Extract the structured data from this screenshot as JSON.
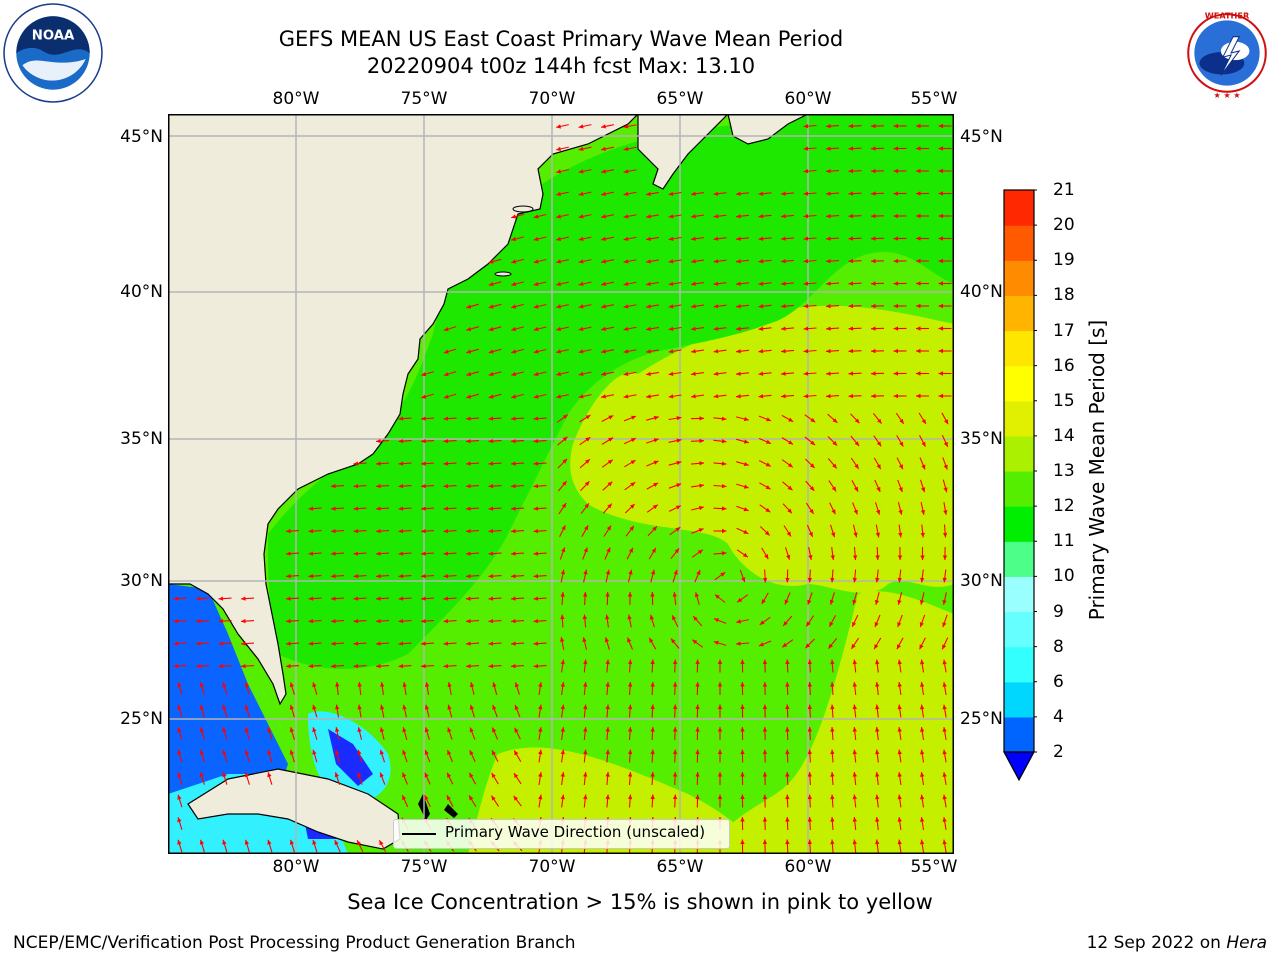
{
  "title_line1": "GEFS MEAN US East Coast Primary Wave Mean Period",
  "title_line2": "20220904 t00z 144h fcst   Max: 13.10",
  "logos": {
    "left": "noaa-logo",
    "left_text": "NOAA",
    "right": "nws-logo",
    "right_text": "NATIONAL WEATHER SERVICE"
  },
  "map": {
    "lon_labels": [
      "80°W",
      "75°W",
      "70°W",
      "65°W",
      "60°W",
      "55°W"
    ],
    "lat_labels": [
      "45°N",
      "40°N",
      "35°N",
      "30°N",
      "25°N"
    ],
    "colors": {
      "land": "#efecdc",
      "grid": "#b4b4b4",
      "arrow": "#ff0000",
      "coast": "#000000"
    }
  },
  "colorbar": {
    "title": "Primary Wave Mean Period [s]",
    "ticks": [
      "2",
      "4",
      "6",
      "8",
      "9",
      "10",
      "11",
      "12",
      "13",
      "14",
      "15",
      "16",
      "17",
      "18",
      "19",
      "20",
      "21"
    ],
    "colors": [
      "#0064ff",
      "#00d7ff",
      "#33ffff",
      "#66ffff",
      "#99ffff",
      "#4dff88",
      "#00ee00",
      "#55ee00",
      "#aaf000",
      "#e0f000",
      "#ffff00",
      "#ffe600",
      "#ffb400",
      "#ff8c00",
      "#ff5a00",
      "#ff2800",
      "#ff0000"
    ],
    "under_color": "#0000ff"
  },
  "legend": {
    "label": "Primary Wave Direction (unscaled)"
  },
  "subtitle": "Sea Ice Concentration > 15% is shown in pink to yellow",
  "footer_left": "NCEP/EMC/Verification Post Processing Product Generation Branch",
  "footer_date": "12 Sep 2022 on",
  "footer_machine": "Hera"
}
